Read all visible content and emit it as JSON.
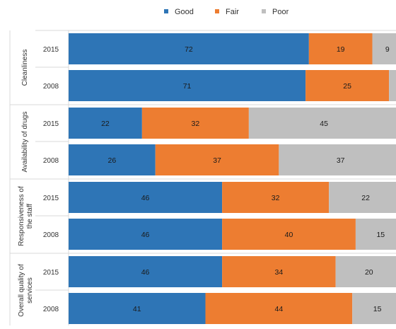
{
  "chart_data": {
    "type": "bar",
    "stacked": true,
    "orientation": "horizontal",
    "title": "",
    "xlabel": "",
    "ylabel": "",
    "xlim": [
      0,
      100
    ],
    "legend": {
      "placement": "top-center",
      "entries": [
        "Good",
        "Fair",
        "Poor"
      ]
    },
    "groups": [
      {
        "label_lines": [
          "Cleanliness"
        ],
        "rows": [
          {
            "year": "2015",
            "values": [
              72,
              19,
              9
            ]
          },
          {
            "year": "2008",
            "values": [
              71,
              25,
              4
            ]
          }
        ]
      },
      {
        "label_lines": [
          "Availability of drugs"
        ],
        "rows": [
          {
            "year": "2015",
            "values": [
              22,
              32,
              45
            ]
          },
          {
            "year": "2008",
            "values": [
              26,
              37,
              37
            ]
          }
        ]
      },
      {
        "label_lines": [
          "Responsiveness of",
          "the staff"
        ],
        "rows": [
          {
            "year": "2015",
            "values": [
              46,
              32,
              22
            ]
          },
          {
            "year": "2008",
            "values": [
              46,
              40,
              15
            ]
          }
        ]
      },
      {
        "label_lines": [
          "Overall quality of",
          "services"
        ],
        "rows": [
          {
            "year": "2015",
            "values": [
              46,
              34,
              20
            ]
          },
          {
            "year": "2008",
            "values": [
              41,
              44,
              15
            ]
          }
        ]
      }
    ],
    "series": [
      {
        "name": "Good",
        "color": "#2e75b6"
      },
      {
        "name": "Fair",
        "color": "#ed7d31"
      },
      {
        "name": "Poor",
        "color": "#bfbfbf"
      }
    ]
  }
}
